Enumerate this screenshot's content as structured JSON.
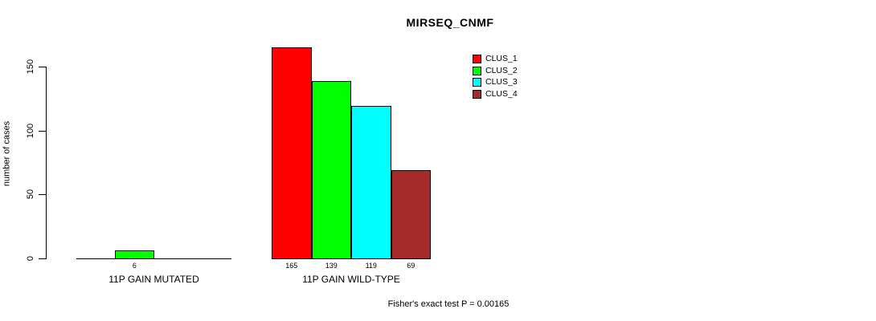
{
  "chart_data": {
    "type": "bar",
    "title": "MIRSEQ_CNMF",
    "ylabel": "number of cases",
    "xlabel": "",
    "ylim": [
      0,
      150
    ],
    "yticks": [
      0,
      50,
      100,
      150
    ],
    "grid": false,
    "legend_position": "upper-right",
    "groups": [
      {
        "label": "11P GAIN MUTATED"
      },
      {
        "label": "11P GAIN WILD-TYPE"
      }
    ],
    "series": [
      {
        "name": "CLUS_1",
        "color": "#ff0000",
        "values": [
          0,
          165
        ]
      },
      {
        "name": "CLUS_2",
        "color": "#00ff00",
        "values": [
          6,
          139
        ]
      },
      {
        "name": "CLUS_3",
        "color": "#00ffff",
        "values": [
          0,
          119
        ]
      },
      {
        "name": "CLUS_4",
        "color": "#a52a2a",
        "values": [
          0,
          69
        ]
      }
    ],
    "value_labels_shown": [
      [
        "",
        "6",
        "",
        ""
      ],
      [
        "165",
        "139",
        "119",
        "69"
      ]
    ],
    "annotation": "Fisher's exact test P = 0.00165"
  },
  "colors": {
    "background": "#ffffff",
    "text": "#000000",
    "bar_border": "#000000"
  }
}
